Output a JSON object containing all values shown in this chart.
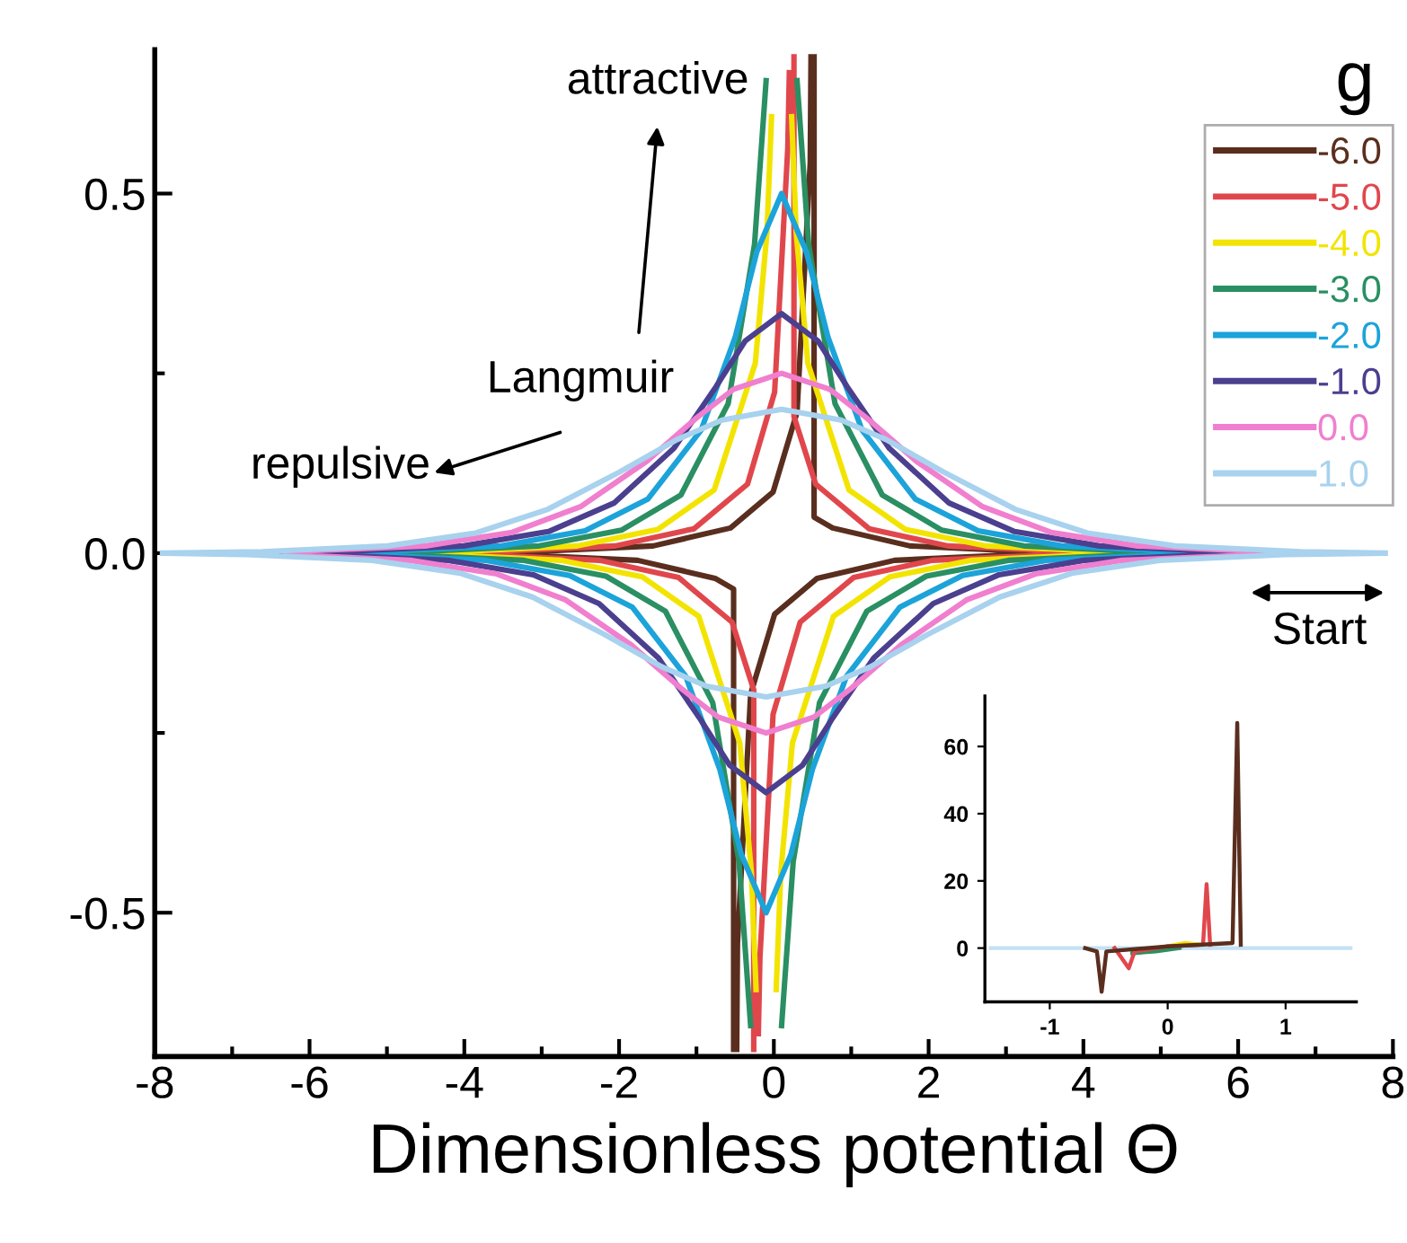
{
  "chart_data": [
    {
      "type": "line",
      "xlabel": "Dimensionless potential Θ",
      "legend_title": "g",
      "xlim": [
        -8,
        8
      ],
      "ylim": [
        -0.7,
        0.7
      ],
      "xticks": [
        -8,
        -6,
        -4,
        -2,
        0,
        2,
        4,
        6,
        8
      ],
      "yticks": [
        -0.5,
        {
          "value": 0.0,
          "label": "0.0"
        },
        0.5
      ],
      "grid": false,
      "legend": "top right",
      "annotations": [
        "attractive",
        "Langmuir",
        "repulsive",
        "Start"
      ],
      "series": [
        {
          "name": "-6.0",
          "color": "#5a2e1e",
          "x": [
            6.4,
            3.12,
            1.56,
            0.56,
            0.01,
            -0.3,
            -0.47,
            -0.48,
            null,
            -0.52,
            -0.52,
            -0.76,
            -1.76,
            -3.32,
            -6.6,
            null,
            -6.4,
            -3.12,
            -1.56,
            -0.56,
            -0.01,
            0.3,
            0.47,
            0.48,
            null,
            0.52,
            0.52,
            0.76,
            1.76,
            3.32,
            6.6
          ],
          "values": [
            0,
            -0.002,
            -0.01,
            -0.035,
            -0.085,
            -0.196,
            -0.543,
            -0.69,
            null,
            -0.69,
            -0.05,
            -0.035,
            -0.01,
            -0.002,
            0,
            null,
            0,
            0.002,
            0.01,
            0.035,
            0.085,
            0.196,
            0.543,
            0.69,
            null,
            0.69,
            0.05,
            0.035,
            0.01,
            0.002,
            0
          ]
        },
        {
          "name": "-5.0",
          "color": "#e0474c",
          "x": [
            6.4,
            3.62,
            2.05,
            1.03,
            0.34,
            -0.01,
            -0.18,
            -0.2,
            null,
            -0.26,
            -0.26,
            -0.54,
            -1.23,
            -2.25,
            -3.82,
            -6.6,
            null,
            -6.4,
            -3.62,
            -2.05,
            -1.03,
            -0.34,
            0.01,
            0.18,
            0.2,
            null,
            0.26,
            0.26,
            0.54,
            1.23,
            2.25,
            3.82,
            6.6
          ],
          "values": [
            0,
            -0.002,
            -0.01,
            -0.034,
            -0.096,
            -0.224,
            -0.563,
            -0.668,
            null,
            -0.69,
            -0.19,
            -0.096,
            -0.034,
            -0.01,
            -0.002,
            0,
            null,
            0,
            0.002,
            0.01,
            0.034,
            0.096,
            0.224,
            0.563,
            0.668,
            null,
            0.69,
            0.19,
            0.096,
            0.034,
            0.01,
            0.002,
            0
          ]
        },
        {
          "name": "-4.0",
          "color": "#f2e400",
          "x": [
            6.4,
            4.12,
            2.54,
            1.5,
            0.77,
            0.24,
            0.09,
            0.03,
            null,
            -0.23,
            -0.29,
            -0.44,
            -0.97,
            -1.7,
            -2.74,
            -4.32,
            -6.6,
            null,
            -6.4,
            -4.12,
            -2.54,
            -1.5,
            -0.77,
            -0.24,
            -0.09,
            -0.03,
            null,
            0.23,
            0.29,
            0.44,
            0.97,
            1.7,
            2.74,
            4.32,
            6.6
          ],
          "values": [
            0,
            -0.002,
            -0.01,
            -0.033,
            -0.088,
            -0.264,
            -0.444,
            -0.607,
            null,
            -0.607,
            -0.444,
            -0.264,
            -0.088,
            -0.033,
            -0.01,
            -0.002,
            0,
            null,
            0,
            0.002,
            0.01,
            0.033,
            0.088,
            0.264,
            0.444,
            0.607,
            null,
            0.607,
            0.444,
            0.264,
            0.088,
            0.033,
            0.01,
            0.002,
            0
          ]
        },
        {
          "name": "-3.0",
          "color": "#2a8f62",
          "x": [
            6.4,
            4.62,
            3.03,
            1.97,
            1.2,
            0.59,
            0.25,
            0.1,
            null,
            -0.3,
            -0.45,
            -0.79,
            -1.4,
            -2.17,
            -3.23,
            -4.82,
            -6.6,
            null,
            -6.4,
            -4.62,
            -3.03,
            -1.97,
            -1.2,
            -0.59,
            -0.25,
            -0.1,
            null,
            0.3,
            0.45,
            0.79,
            1.4,
            2.17,
            3.23,
            4.82,
            6.6
          ],
          "values": [
            0,
            -0.002,
            -0.01,
            -0.032,
            -0.081,
            -0.208,
            -0.429,
            -0.657,
            null,
            -0.657,
            -0.429,
            -0.208,
            -0.081,
            -0.032,
            -0.01,
            -0.002,
            0,
            null,
            0,
            0.002,
            0.01,
            0.032,
            0.081,
            0.208,
            0.429,
            0.657,
            null,
            0.657,
            0.429,
            0.208,
            0.081,
            0.032,
            0.01,
            0.002,
            0
          ]
        },
        {
          "name": "-2.0",
          "color": "#1ca3d9",
          "x": [
            6.4,
            5.11,
            3.52,
            2.44,
            1.63,
            0.94,
            0.5,
            0.22,
            -0.1,
            -0.42,
            -0.7,
            -1.14,
            -1.83,
            -2.64,
            -3.72,
            -5.31,
            -6.6,
            null,
            -6.4,
            -5.11,
            -3.52,
            -2.44,
            -1.63,
            -0.94,
            -0.5,
            -0.22,
            0.1,
            0.42,
            0.7,
            1.14,
            1.83,
            2.64,
            3.72,
            5.31,
            6.6
          ],
          "values": [
            0,
            -0.002,
            -0.01,
            -0.031,
            -0.075,
            -0.171,
            -0.3,
            -0.419,
            -0.5,
            -0.419,
            -0.3,
            -0.171,
            -0.075,
            -0.031,
            -0.01,
            -0.002,
            0,
            null,
            0,
            0.002,
            0.01,
            0.031,
            0.075,
            0.171,
            0.3,
            0.419,
            0.5,
            0.419,
            0.3,
            0.171,
            0.075,
            0.031,
            0.01,
            0.002,
            0
          ]
        },
        {
          "name": "-1.0",
          "color": "#4b3f8f",
          "x": [
            6.4,
            5.61,
            4.01,
            2.91,
            2.06,
            1.29,
            0.75,
            0.37,
            -0.1,
            -0.57,
            -0.95,
            -1.49,
            -2.26,
            -3.11,
            -4.21,
            -5.81,
            -6.6,
            null,
            -6.4,
            -5.61,
            -4.01,
            -2.91,
            -2.06,
            -1.29,
            -0.75,
            -0.37,
            0.1,
            0.57,
            0.95,
            1.49,
            2.26,
            3.11,
            4.21,
            5.81,
            6.6
          ],
          "values": [
            0,
            -0.002,
            -0.01,
            -0.03,
            -0.07,
            -0.146,
            -0.231,
            -0.295,
            -0.333,
            -0.295,
            -0.231,
            -0.146,
            -0.07,
            -0.03,
            -0.01,
            -0.002,
            0,
            null,
            0,
            0.002,
            0.01,
            0.03,
            0.07,
            0.146,
            0.231,
            0.295,
            0.333,
            0.295,
            0.231,
            0.146,
            0.07,
            0.03,
            0.01,
            0.002,
            0
          ]
        },
        {
          "name": "0.0",
          "color": "#f07fcf",
          "x": [
            6.31,
            4.5,
            3.38,
            2.49,
            1.64,
            1.0,
            0.52,
            -0.1,
            -0.72,
            -1.2,
            -1.84,
            -2.69,
            -3.58,
            -4.7,
            -6.31,
            null,
            -6.31,
            -4.5,
            -3.38,
            -2.49,
            -1.64,
            -1.0,
            -0.52,
            0.1,
            0.72,
            1.2,
            1.84,
            2.69,
            3.58,
            4.7,
            6.31
          ],
          "values": [
            -0.002,
            -0.01,
            -0.029,
            -0.065,
            -0.128,
            -0.188,
            -0.228,
            -0.25,
            -0.228,
            -0.188,
            -0.128,
            -0.065,
            -0.029,
            -0.01,
            -0.002,
            null,
            0.002,
            0.01,
            0.029,
            0.065,
            0.128,
            0.188,
            0.228,
            0.25,
            0.228,
            0.188,
            0.128,
            0.065,
            0.029,
            0.01,
            0.002
          ]
        },
        {
          "name": "1.0",
          "color": "#a8d2ee",
          "x": [
            7.9,
            6.61,
            4.99,
            3.85,
            2.92,
            1.99,
            1.25,
            0.67,
            -0.1,
            -0.87,
            -1.45,
            -2.19,
            -3.12,
            -4.05,
            -5.19,
            -6.81,
            -7.9,
            null,
            -7.9,
            -6.61,
            -4.99,
            -3.85,
            -2.92,
            -1.99,
            -1.25,
            -0.67,
            0.1,
            0.87,
            1.45,
            2.19,
            3.12,
            4.05,
            5.19,
            6.81,
            7.9
          ],
          "values": [
            0,
            -0.002,
            -0.01,
            -0.028,
            -0.061,
            -0.113,
            -0.158,
            -0.185,
            -0.2,
            -0.185,
            -0.158,
            -0.113,
            -0.061,
            -0.028,
            -0.01,
            -0.002,
            0,
            null,
            0,
            0.002,
            0.01,
            0.028,
            0.061,
            0.113,
            0.158,
            0.185,
            0.2,
            0.185,
            0.158,
            0.113,
            0.061,
            0.028,
            0.01,
            0.002,
            0
          ]
        }
      ]
    },
    {
      "type": "line",
      "xlim": [
        -1.55,
        1.6
      ],
      "ylim": [
        -16,
        75
      ],
      "xticks": [
        -1,
        0,
        1
      ],
      "yticks": [
        0,
        20,
        40,
        60
      ],
      "grid": false,
      "legend": false,
      "series": [
        {
          "color": "#c3e1f4",
          "x": [
            -1.5,
            1.55
          ],
          "values": [
            0,
            0
          ]
        },
        {
          "color": "#2a8f62",
          "x": [
            -0.3,
            -0.1,
            0.1
          ],
          "values": [
            -1.5,
            -1,
            0
          ]
        },
        {
          "color": "#f2e400",
          "x": [
            0,
            0.15,
            0.28
          ],
          "values": [
            0.5,
            1.5,
            1
          ]
        },
        {
          "color": "#e0474c",
          "x": [
            -0.45,
            -0.33,
            -0.28,
            0,
            0.3,
            0.33,
            0.36
          ],
          "values": [
            0,
            -6,
            -1,
            0.5,
            1,
            19,
            1
          ]
        },
        {
          "color": "#5a2e1e",
          "x": [
            -0.7,
            -0.6,
            -0.56,
            -0.52,
            0,
            0.55,
            0.59,
            0.62
          ],
          "values": [
            0,
            -1,
            -13,
            -1,
            0.5,
            1.5,
            67,
            1
          ]
        }
      ]
    }
  ]
}
